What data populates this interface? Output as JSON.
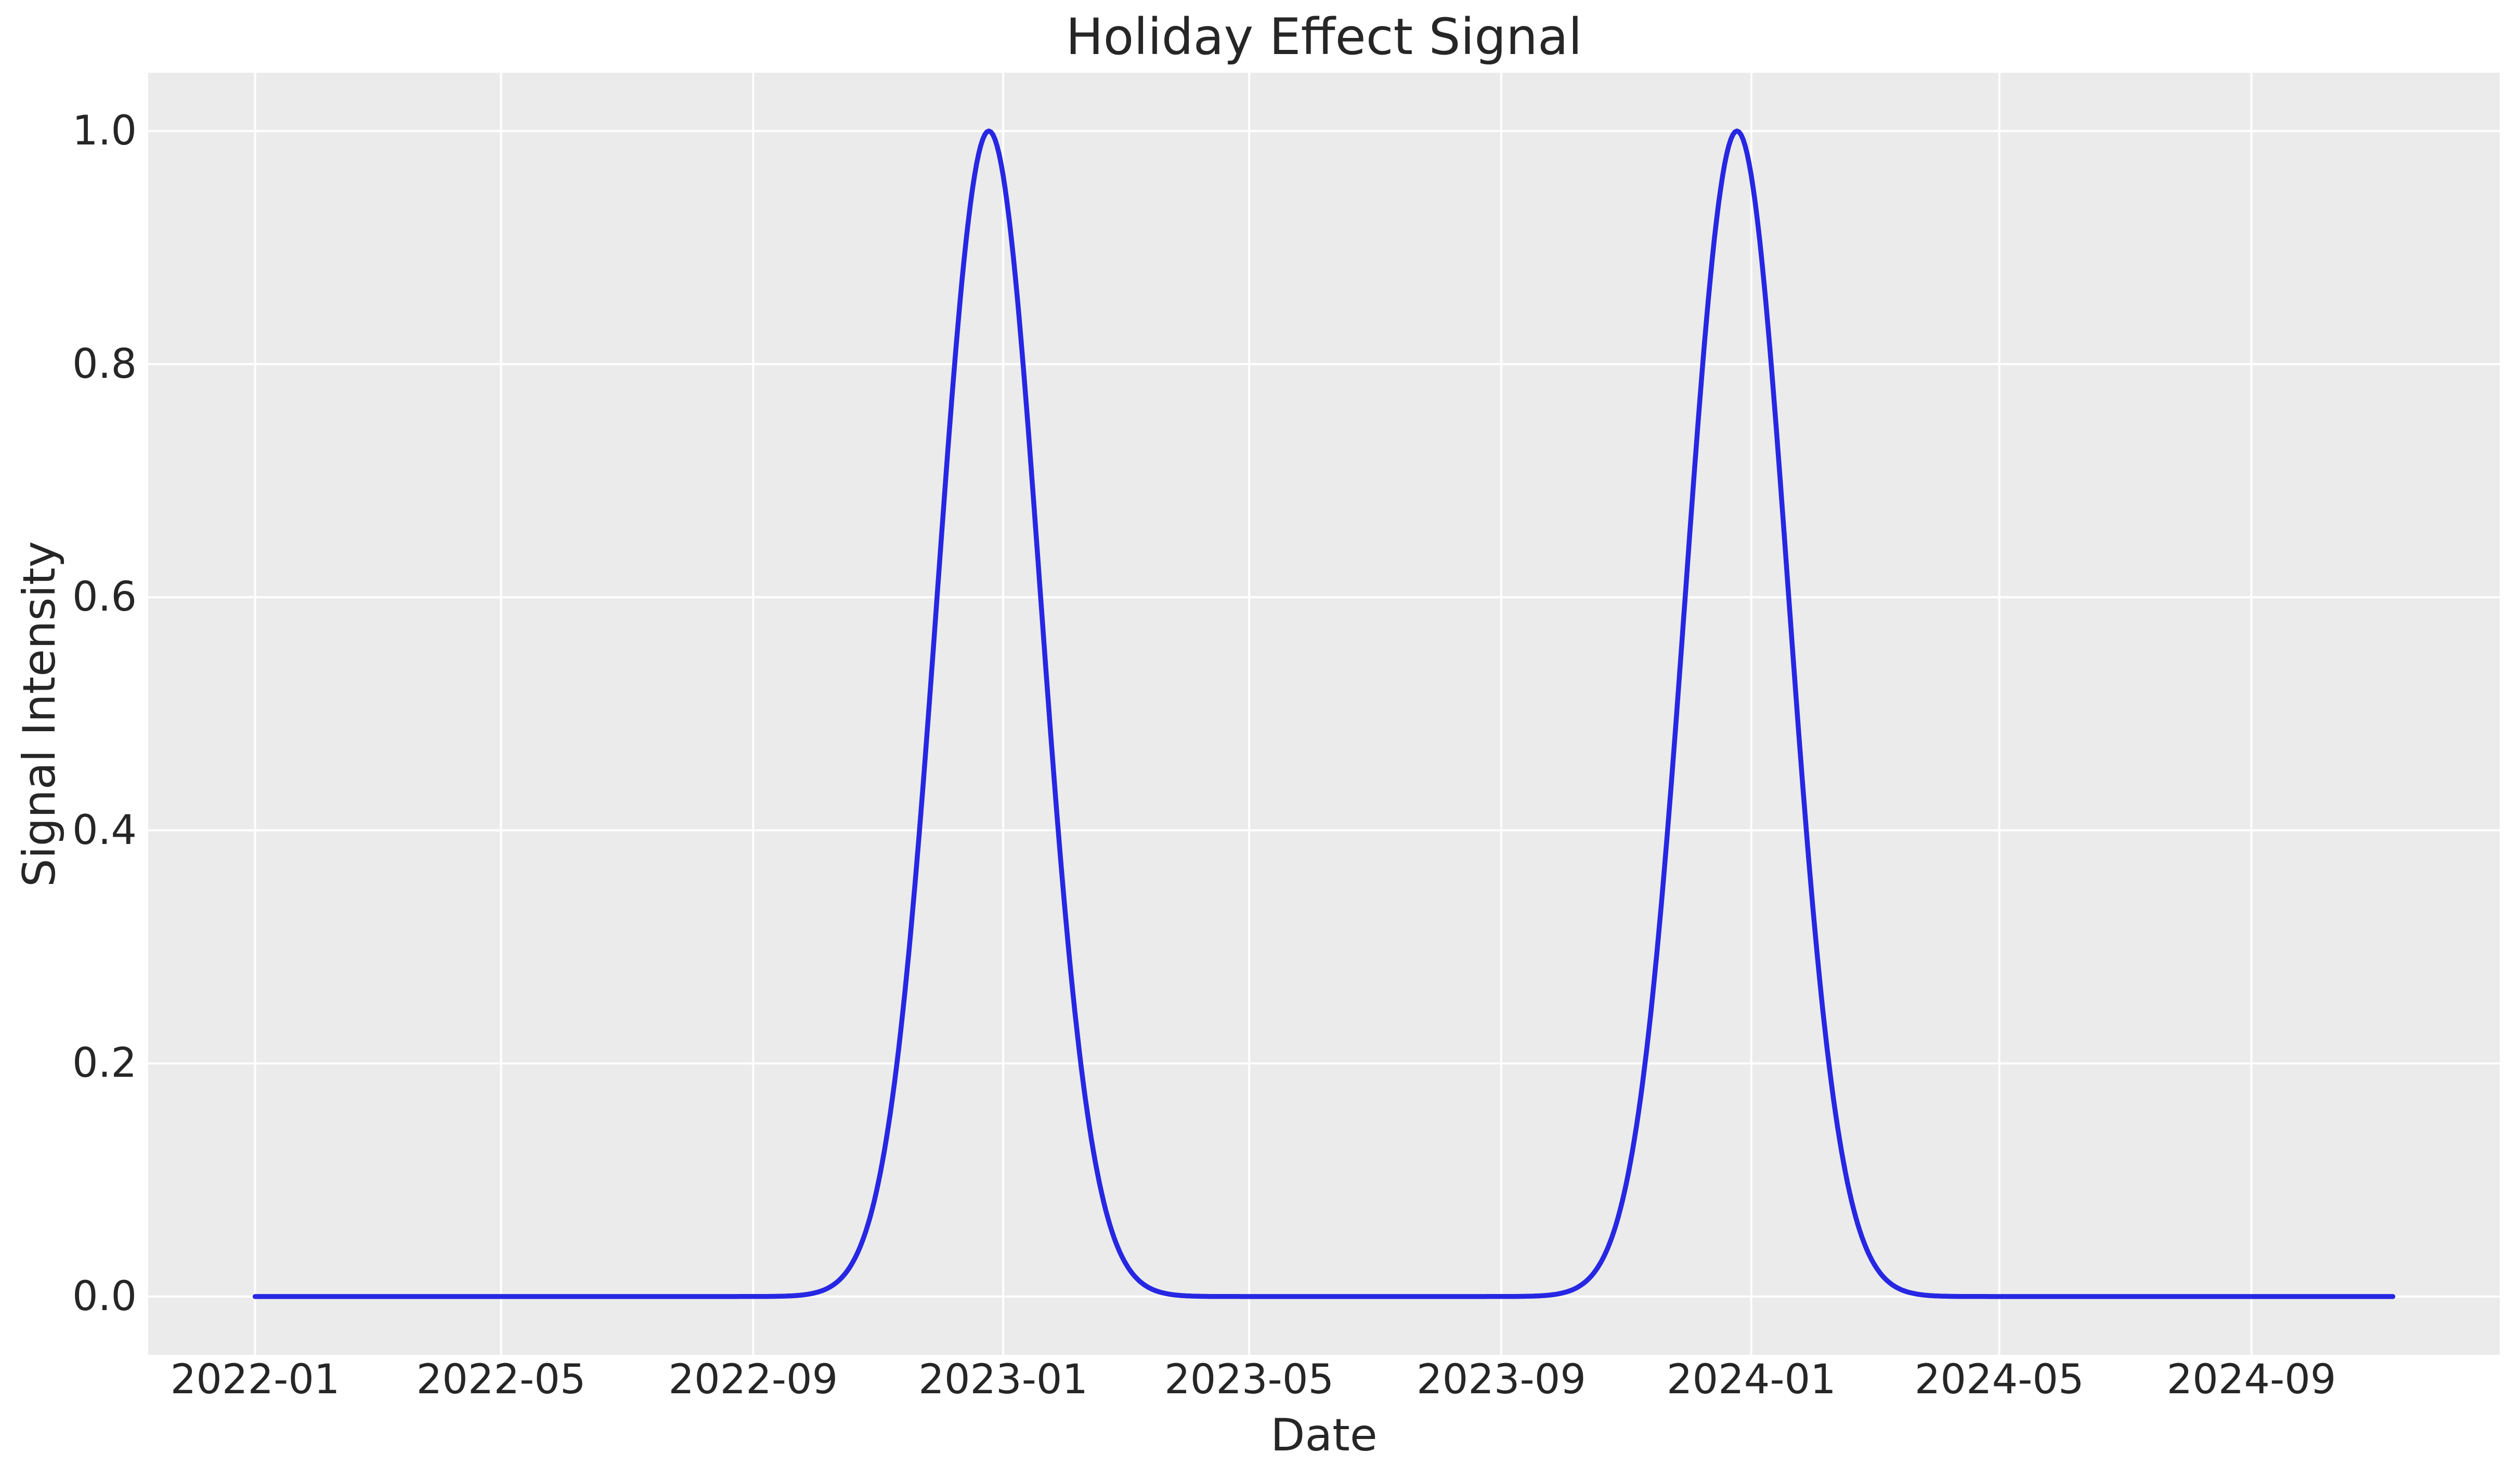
{
  "chart_data": {
    "type": "line",
    "title": "Holiday Effect Signal",
    "xlabel": "Date",
    "ylabel": "Signal Intensity",
    "grid": true,
    "legend": null,
    "colors": {
      "line": "#2727e3",
      "plot_background": "#ebebeb",
      "grid": "#ffffff",
      "text": "#262626",
      "figure_background": "#ffffff"
    },
    "x_axis": {
      "start_date": "2022-01-01",
      "end_date": "2024-11-09",
      "range_days": 1043,
      "margin_frac": 0.05,
      "ticks": [
        {
          "label": "2022-01",
          "day": 0
        },
        {
          "label": "2022-05",
          "day": 120
        },
        {
          "label": "2022-09",
          "day": 243
        },
        {
          "label": "2023-01",
          "day": 365
        },
        {
          "label": "2023-05",
          "day": 485
        },
        {
          "label": "2023-09",
          "day": 608
        },
        {
          "label": "2024-01",
          "day": 730
        },
        {
          "label": "2024-05",
          "day": 851
        },
        {
          "label": "2024-09",
          "day": 974
        }
      ]
    },
    "y_axis": {
      "ylim": [
        -0.05,
        1.05
      ],
      "ticks": [
        {
          "label": "0.0",
          "value": 0.0
        },
        {
          "label": "0.2",
          "value": 0.2
        },
        {
          "label": "0.4",
          "value": 0.4
        },
        {
          "label": "0.6",
          "value": 0.6
        },
        {
          "label": "0.8",
          "value": 0.8
        },
        {
          "label": "1.0",
          "value": 1.0
        }
      ]
    },
    "series": [
      {
        "name": "holiday-effect-signal",
        "model": "sum_of_gaussian_peaks",
        "baseline": 0.0,
        "amplitude": 1.0,
        "sigma_days": 25,
        "peaks": [
          {
            "center_date": "2022-12-25",
            "center_day": 358,
            "value": 1.0
          },
          {
            "center_date": "2023-12-25",
            "center_day": 723,
            "value": 1.0
          }
        ],
        "sample_step_days": 1,
        "key_points": [
          {
            "date": "2022-01-01",
            "value": 0.0
          },
          {
            "date": "2022-09-01",
            "value": 0.0
          },
          {
            "date": "2022-11-25",
            "value": 0.5
          },
          {
            "date": "2022-12-25",
            "value": 1.0
          },
          {
            "date": "2023-01-24",
            "value": 0.5
          },
          {
            "date": "2023-06-01",
            "value": 0.0
          },
          {
            "date": "2023-11-25",
            "value": 0.5
          },
          {
            "date": "2023-12-25",
            "value": 1.0
          },
          {
            "date": "2024-01-24",
            "value": 0.5
          },
          {
            "date": "2024-06-01",
            "value": 0.0
          },
          {
            "date": "2024-11-09",
            "value": 0.0
          }
        ]
      }
    ]
  }
}
